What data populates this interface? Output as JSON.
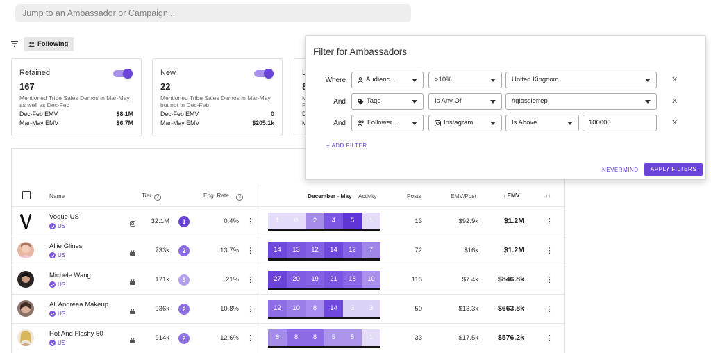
{
  "search": {
    "placeholder": "Jump to an Ambassador or Campaign..."
  },
  "toolbar": {
    "following_label": "Following"
  },
  "cards": [
    {
      "title": "Retained",
      "count": "167",
      "desc": "Mentioned Tribe Sales Demos in Mar-May as well as Dec-Feb",
      "rows": [
        {
          "label": "Dec-Feb EMV",
          "value": "$8.1M"
        },
        {
          "label": "Mar-May EMV",
          "value": "$6.7M"
        }
      ]
    },
    {
      "title": "New",
      "count": "22",
      "desc": "Mentioned Tribe Sales Demos in Mar-May but not in Dec-Feb",
      "rows": [
        {
          "label": "Dec-Feb EMV",
          "value": "0"
        },
        {
          "label": "Mar-May EMV",
          "value": "$205.1k"
        }
      ]
    },
    {
      "title": "L",
      "count": "8",
      "desc": "M\nF",
      "rows": [
        {
          "label": "D",
          "value": ""
        },
        {
          "label": "M",
          "value": ""
        }
      ]
    }
  ],
  "table": {
    "headers": {
      "name": "Name",
      "tier": "Tier",
      "eng": "Eng. Rate",
      "period": "December - May",
      "activity": "Activity",
      "posts": "Posts",
      "emv_post": "EMV/Post",
      "emv": "EMV"
    },
    "rows": [
      {
        "name": "Vogue US",
        "country": "US",
        "followers": "32.1M",
        "tier": "1",
        "eng": "0.4%",
        "activity": [
          "1",
          "0",
          "2",
          "4",
          "5",
          "1"
        ],
        "posts": "13",
        "emv_post": "$92.9k",
        "emv": "$1.2M"
      },
      {
        "name": "Allie Glines",
        "country": "US",
        "followers": "733k",
        "tier": "2",
        "eng": "13.7%",
        "activity": [
          "14",
          "13",
          "12",
          "14",
          "12",
          "7"
        ],
        "posts": "72",
        "emv_post": "$16k",
        "emv": "$1.2M"
      },
      {
        "name": "Michele Wang",
        "country": "US",
        "followers": "171k",
        "tier": "3",
        "eng": "21%",
        "activity": [
          "27",
          "20",
          "19",
          "21",
          "18",
          "10"
        ],
        "posts": "115",
        "emv_post": "$7.4k",
        "emv": "$846.8k"
      },
      {
        "name": "Ali Andreea Makeup",
        "country": "US",
        "followers": "936k",
        "tier": "2",
        "eng": "10.8%",
        "activity": [
          "12",
          "10",
          "8",
          "14",
          "3",
          "3"
        ],
        "posts": "50",
        "emv_post": "$13.3k",
        "emv": "$663.8k"
      },
      {
        "name": "Hot And Flashy 50",
        "country": "US",
        "followers": "914k",
        "tier": "2",
        "eng": "12.6%",
        "activity": [
          "6",
          "8",
          "8",
          "5",
          "5",
          "1"
        ],
        "posts": "33",
        "emv_post": "$17.5k",
        "emv": "$576.2k"
      }
    ]
  },
  "filter_panel": {
    "title": "Filter for Ambassadors",
    "rows": [
      {
        "conj": "Where",
        "field": "Audienc...",
        "op": ">10%",
        "value": "United Kingdom"
      },
      {
        "conj": "And",
        "field": "Tags",
        "op": "Is Any Of",
        "value": "#glossierrep"
      },
      {
        "conj": "And",
        "field": "Follower...",
        "op": "Instagram",
        "value": "Is Above",
        "extra": "100000"
      }
    ],
    "add_filter": "+ ADD FILTER",
    "nevermind": "NEVERMIND",
    "apply": "APPLY FILTERS"
  },
  "colors": {
    "accent": "#6a43d9"
  }
}
